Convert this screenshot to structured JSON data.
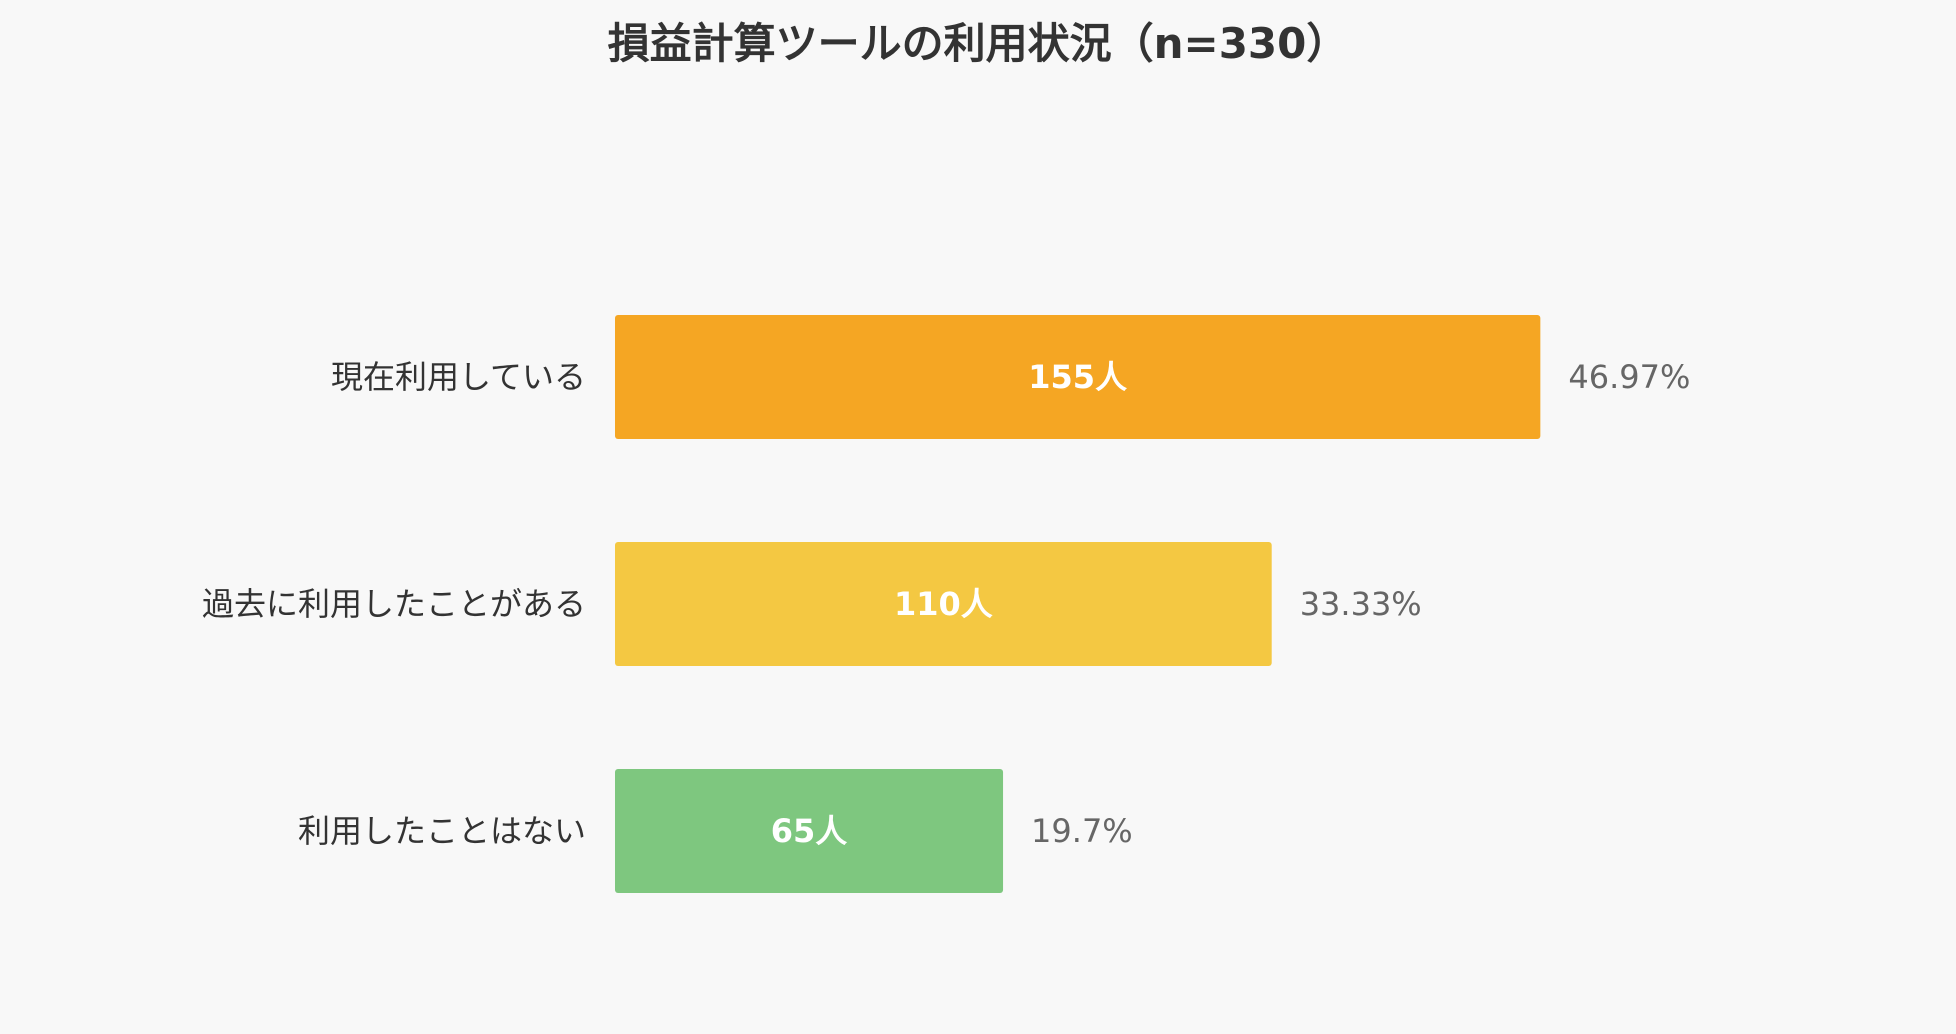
{
  "chart_data": {
    "type": "bar",
    "orientation": "horizontal",
    "title": "損益計算ツールの利用状況（n=330）",
    "categories": [
      "現在利用している",
      "過去に利用したことがある",
      "利用したことはない"
    ],
    "values": [
      155,
      110,
      65
    ],
    "value_labels": [
      "155人",
      "110人",
      "65人"
    ],
    "percent_labels": [
      "46.97%",
      "33.33%",
      "19.7%"
    ],
    "colors": [
      "#f5a623",
      "#f4c842",
      "#7ec77f"
    ],
    "grid": false,
    "legend": "none"
  }
}
